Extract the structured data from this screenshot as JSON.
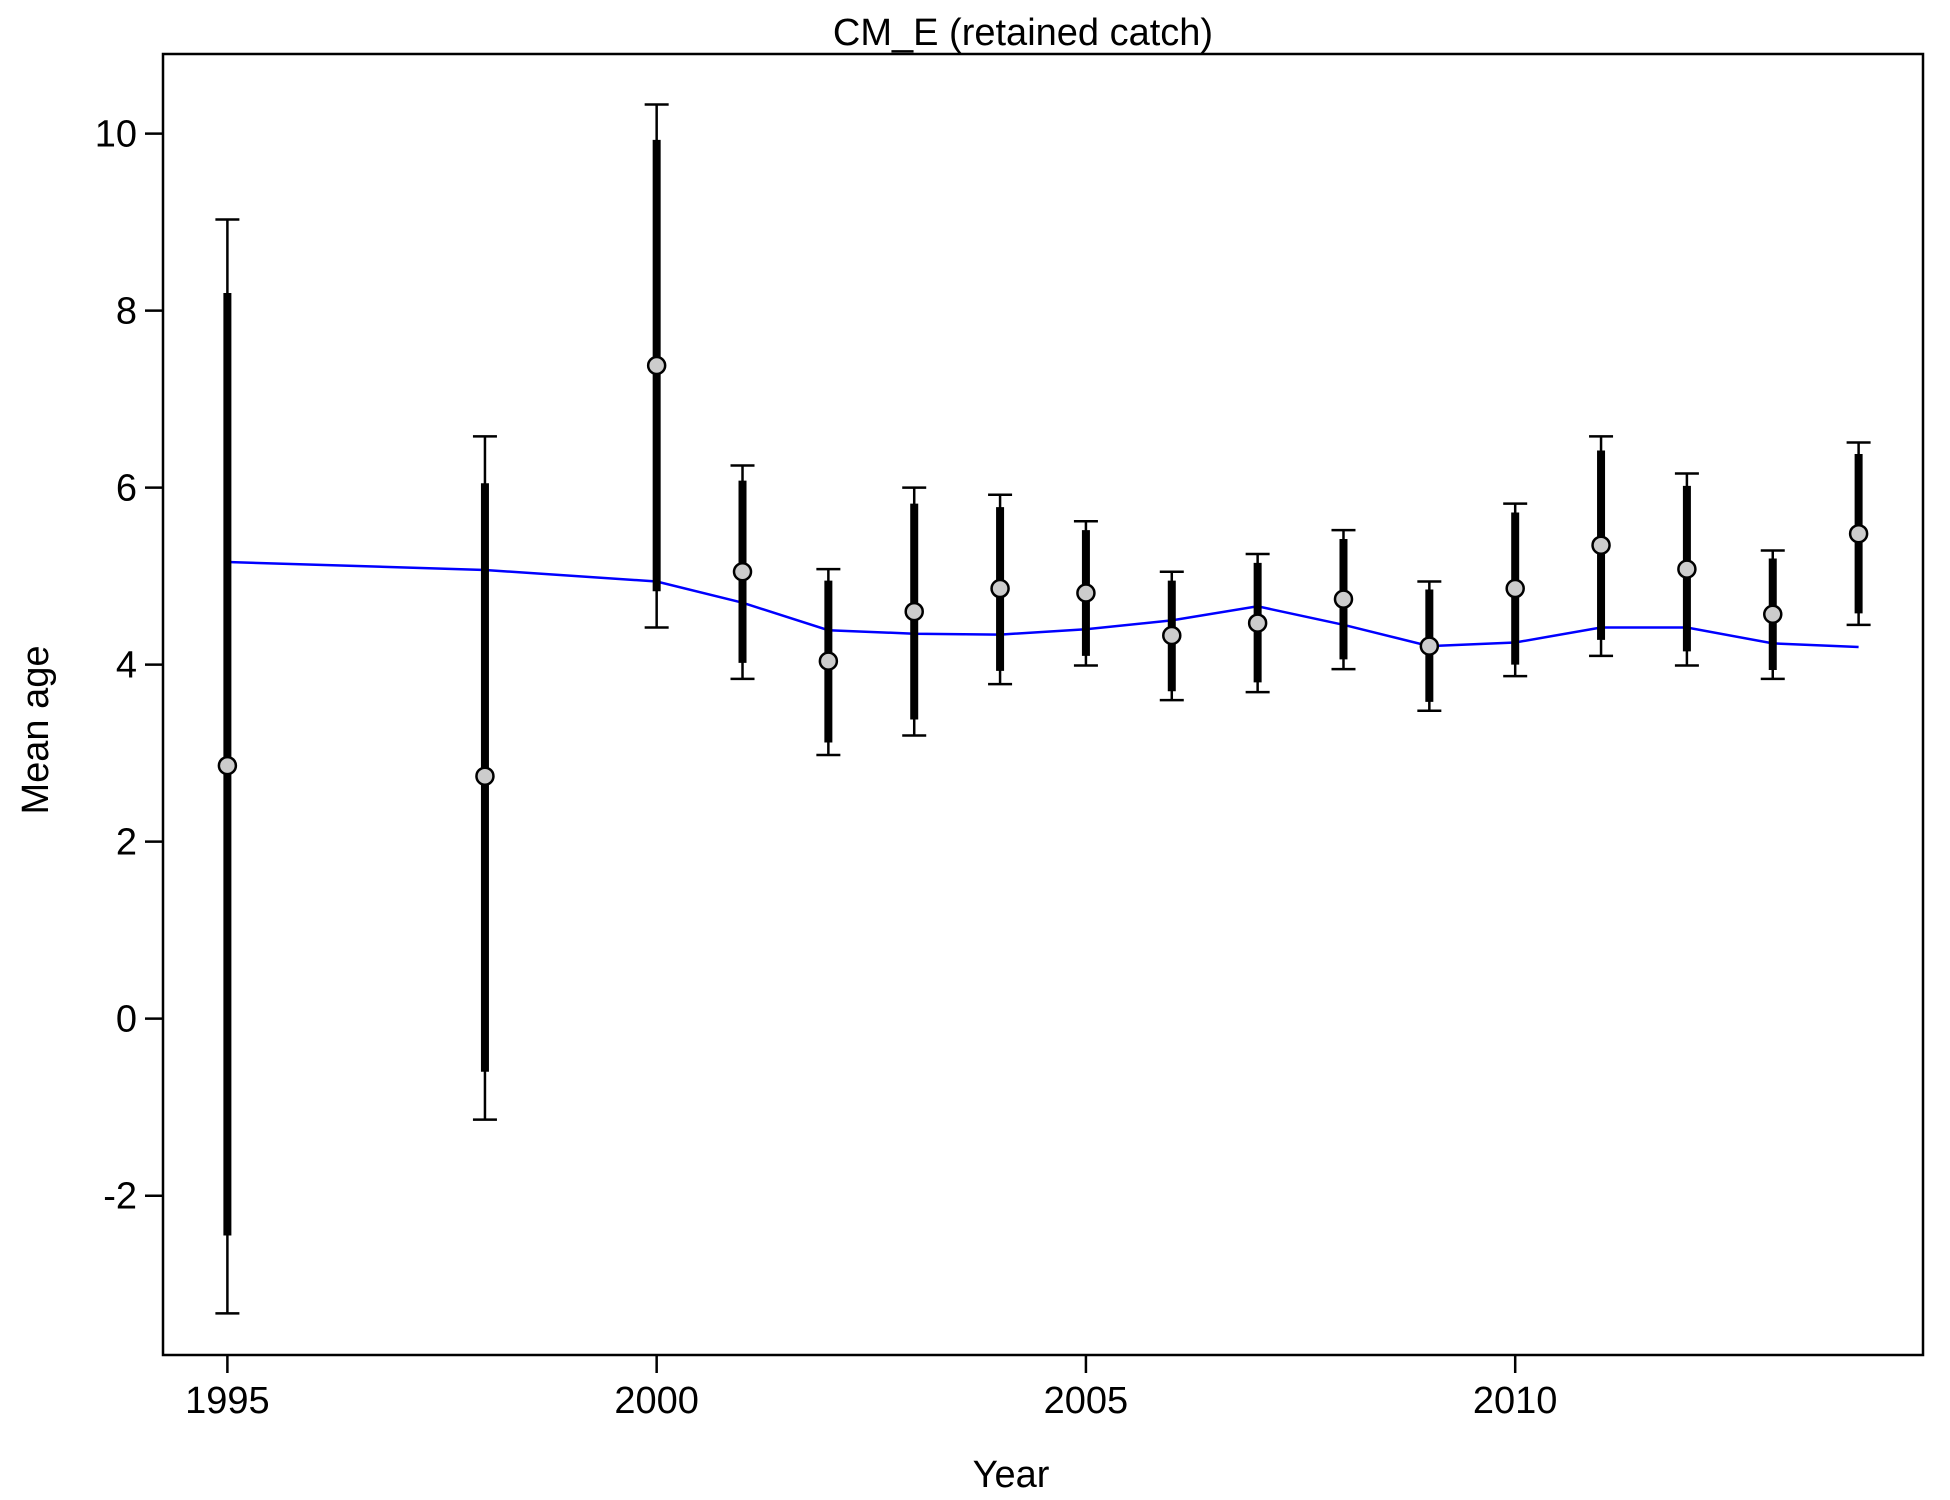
{
  "chart_data": {
    "type": "scatter",
    "title": "CM_E (retained catch)",
    "xlabel": "Year",
    "ylabel": "Mean age",
    "xlim": [
      1994.25,
      2014.75
    ],
    "ylim": [
      -3.8,
      10.9
    ],
    "xticks": [
      1995,
      2000,
      2005,
      2010
    ],
    "yticks": [
      -2,
      0,
      2,
      4,
      6,
      8,
      10
    ],
    "grid": false,
    "legend": "none",
    "colors": {
      "expected_line": "#0000ff",
      "observed_fill": "#cccccc",
      "interval": "#000000",
      "frame": "#000000"
    },
    "series": [
      {
        "name": "",
        "kind": "observed-with-intervals",
        "points": [
          {
            "x": 1995,
            "y": 2.86,
            "inner": [
              -2.45,
              8.2
            ],
            "outer": [
              -3.33,
              9.03
            ]
          },
          {
            "x": 1998,
            "y": 2.74,
            "inner": [
              -0.6,
              6.05
            ],
            "outer": [
              -1.14,
              6.58
            ]
          },
          {
            "x": 2000,
            "y": 7.38,
            "inner": [
              4.83,
              9.93
            ],
            "outer": [
              4.42,
              10.33
            ]
          },
          {
            "x": 2001,
            "y": 5.05,
            "inner": [
              4.02,
              6.08
            ],
            "outer": [
              3.84,
              6.25
            ]
          },
          {
            "x": 2002,
            "y": 4.04,
            "inner": [
              3.12,
              4.95
            ],
            "outer": [
              2.98,
              5.08
            ]
          },
          {
            "x": 2003,
            "y": 4.6,
            "inner": [
              3.38,
              5.82
            ],
            "outer": [
              3.2,
              6.0
            ]
          },
          {
            "x": 2004,
            "y": 4.86,
            "inner": [
              3.93,
              5.78
            ],
            "outer": [
              3.78,
              5.92
            ]
          },
          {
            "x": 2005,
            "y": 4.81,
            "inner": [
              4.1,
              5.52
            ],
            "outer": [
              3.99,
              5.62
            ]
          },
          {
            "x": 2006,
            "y": 4.33,
            "inner": [
              3.7,
              4.95
            ],
            "outer": [
              3.6,
              5.05
            ]
          },
          {
            "x": 2007,
            "y": 4.47,
            "inner": [
              3.8,
              5.15
            ],
            "outer": [
              3.69,
              5.25
            ]
          },
          {
            "x": 2008,
            "y": 4.74,
            "inner": [
              4.06,
              5.42
            ],
            "outer": [
              3.95,
              5.52
            ]
          },
          {
            "x": 2009,
            "y": 4.21,
            "inner": [
              3.58,
              4.85
            ],
            "outer": [
              3.48,
              4.94
            ]
          },
          {
            "x": 2010,
            "y": 4.86,
            "inner": [
              4.0,
              5.72
            ],
            "outer": [
              3.87,
              5.82
            ]
          },
          {
            "x": 2011,
            "y": 5.35,
            "inner": [
              4.28,
              6.42
            ],
            "outer": [
              4.1,
              6.58
            ]
          },
          {
            "x": 2012,
            "y": 5.08,
            "inner": [
              4.15,
              6.02
            ],
            "outer": [
              3.99,
              6.16
            ]
          },
          {
            "x": 2013,
            "y": 4.57,
            "inner": [
              3.94,
              5.2
            ],
            "outer": [
              3.84,
              5.29
            ]
          },
          {
            "x": 2014,
            "y": 5.48,
            "inner": [
              4.58,
              6.38
            ],
            "outer": [
              4.45,
              6.51
            ]
          }
        ]
      },
      {
        "name": "",
        "kind": "expected-line",
        "x": [
          1995,
          1998,
          2000,
          2001,
          2002,
          2003,
          2004,
          2005,
          2006,
          2007,
          2008,
          2009,
          2010,
          2011,
          2012,
          2013,
          2014
        ],
        "y": [
          5.16,
          5.07,
          4.94,
          4.7,
          4.39,
          4.35,
          4.34,
          4.4,
          4.5,
          4.66,
          4.45,
          4.21,
          4.25,
          4.42,
          4.42,
          4.24,
          4.2
        ]
      }
    ]
  }
}
